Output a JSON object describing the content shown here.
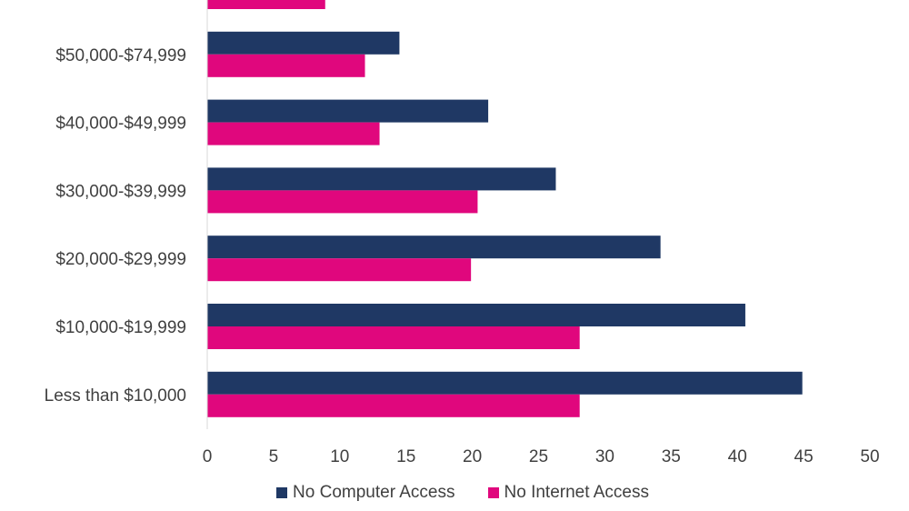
{
  "chart_data": {
    "type": "bar",
    "orientation": "horizontal",
    "categories": [
      "",
      "$50,000-$74,999",
      "$40,000-$49,999",
      "$30,000-$39,999",
      "$20,000-$29,999",
      "$10,000-$19,999",
      "Less than $10,000"
    ],
    "series": [
      {
        "name": "No Computer Access",
        "color": "#1f3864",
        "values": [
          null,
          14.5,
          21.2,
          26.3,
          34.2,
          40.6,
          44.9
        ]
      },
      {
        "name": "No Internet Access",
        "color": "#e0077d",
        "values": [
          8.9,
          11.9,
          13.0,
          20.4,
          19.9,
          28.1,
          28.1
        ]
      }
    ],
    "xlim": [
      0,
      50
    ],
    "xticks": [
      "0",
      "5",
      "10",
      "15",
      "20",
      "25",
      "30",
      "35",
      "40",
      "45",
      "50"
    ],
    "grid": false,
    "legend": "bottom"
  }
}
